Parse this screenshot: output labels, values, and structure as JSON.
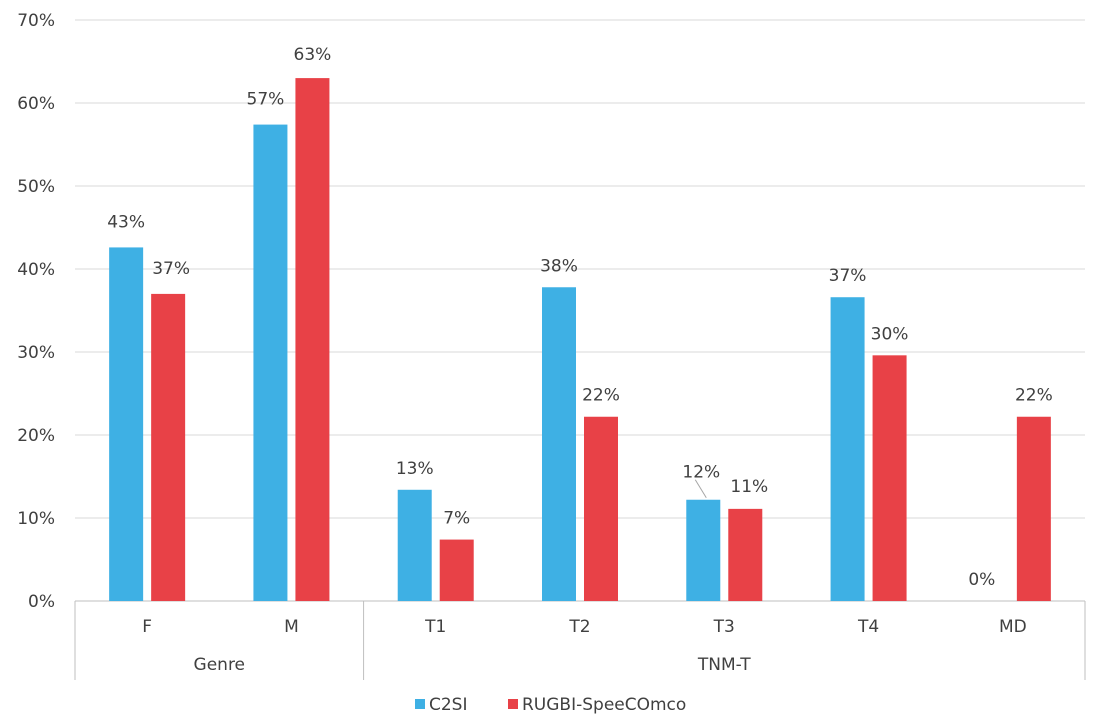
{
  "chart_data": {
    "type": "bar",
    "title": "",
    "xlabel": "",
    "ylabel": "",
    "ylim": [
      0,
      0.7
    ],
    "yticks": [
      0,
      0.1,
      0.2,
      0.3,
      0.4,
      0.5,
      0.6,
      0.7
    ],
    "y_format": "percent",
    "grid": "horizontal",
    "legend_position": "bottom",
    "categories": [
      "F",
      "M",
      "T1",
      "T2",
      "T3",
      "T4",
      "MD"
    ],
    "groups": [
      {
        "label": "Genre",
        "categories": [
          "F",
          "M"
        ]
      },
      {
        "label": "TNM-T",
        "categories": [
          "T1",
          "T2",
          "T3",
          "T4",
          "MD"
        ]
      }
    ],
    "series": [
      {
        "name": "C2SI",
        "color": "#3EB0E4",
        "values": [
          0.426,
          0.574,
          0.134,
          0.378,
          0.122,
          0.366,
          0.0
        ],
        "labels": [
          "43%",
          "57%",
          "13%",
          "38%",
          "12%",
          "37%",
          "0%"
        ]
      },
      {
        "name": "RUGBI-SpeeCOmco",
        "color": "#E84147",
        "values": [
          0.37,
          0.63,
          0.074,
          0.222,
          0.111,
          0.296,
          0.222
        ],
        "labels": [
          "37%",
          "63%",
          "7%",
          "22%",
          "11%",
          "30%",
          "22%"
        ]
      }
    ]
  }
}
